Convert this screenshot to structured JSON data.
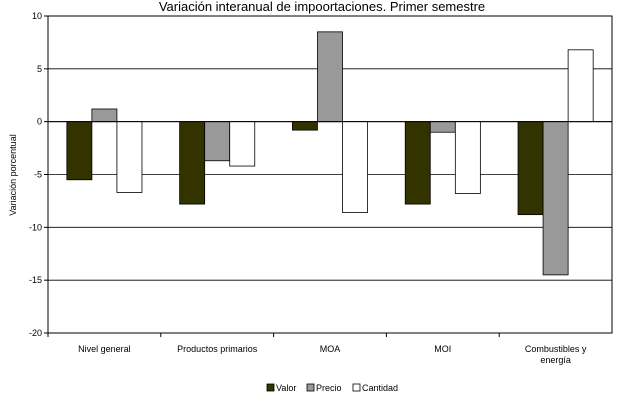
{
  "chart_data": {
    "type": "bar",
    "title": "Variación interanual de impoortaciones. Primer semestre",
    "ylabel": "Variación porcentual",
    "xlabel": "",
    "ylim": [
      -20,
      10
    ],
    "yticks": [
      "10",
      "5",
      "0",
      "-5",
      "-10",
      "-15",
      "-20"
    ],
    "grid": true,
    "legend_position": "bottom",
    "categories": [
      "Nivel general",
      "Productos primarios",
      "MOA",
      "MOI",
      "Combustibles y energía"
    ],
    "category_lines": [
      [
        "Nivel general"
      ],
      [
        "Productos primarios"
      ],
      [
        "MOA"
      ],
      [
        "MOI"
      ],
      [
        "Combustibles y",
        "energía"
      ]
    ],
    "series": [
      {
        "name": "Valor",
        "color": "#333300",
        "values": [
          -5.5,
          -7.8,
          -0.8,
          -7.8,
          -8.8
        ]
      },
      {
        "name": "Precio",
        "color": "#999999",
        "values": [
          1.2,
          -3.7,
          8.5,
          -1.0,
          -14.5
        ]
      },
      {
        "name": "Cantidad",
        "color": "#ffffff",
        "values": [
          -6.7,
          -4.2,
          -8.6,
          -6.8,
          6.8
        ]
      }
    ]
  }
}
